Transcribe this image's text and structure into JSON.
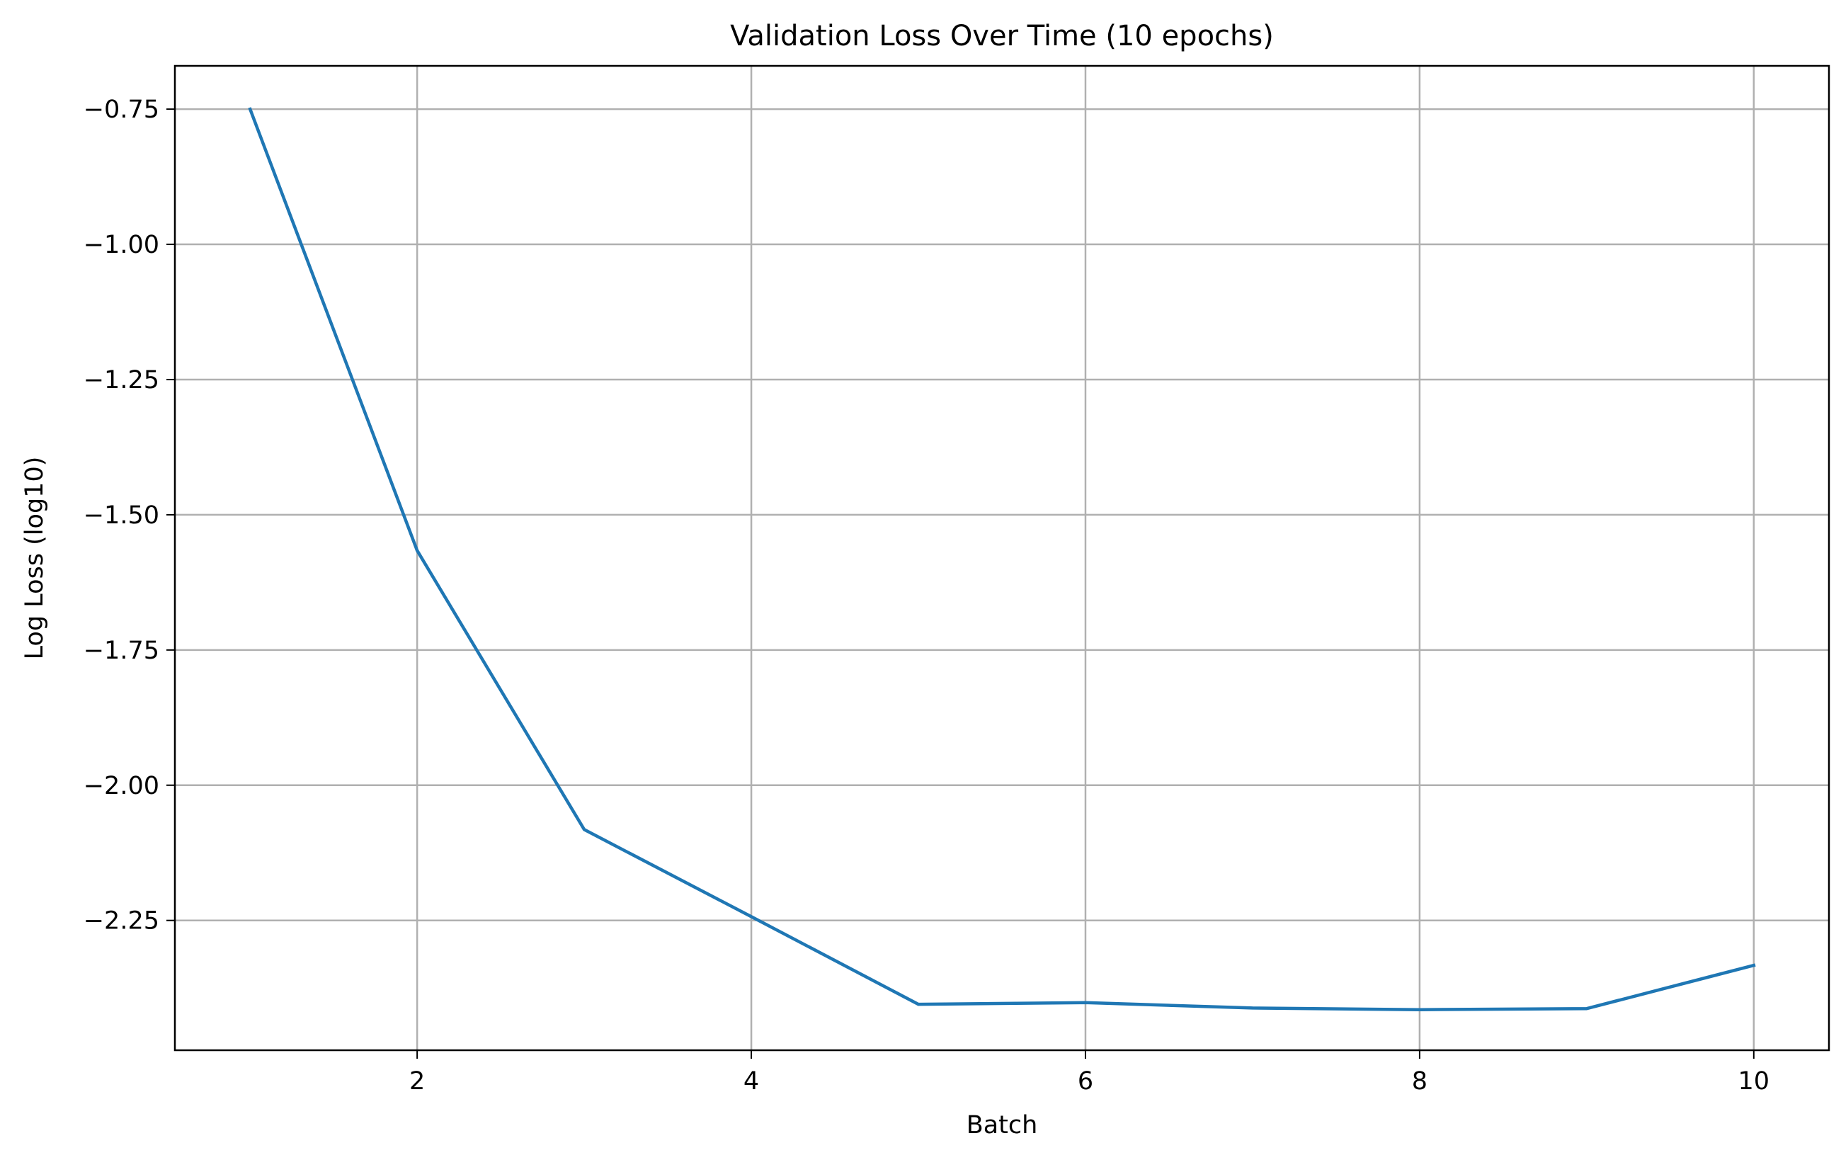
{
  "chart_data": {
    "type": "line",
    "title": "Validation Loss Over Time (10 epochs)",
    "xlabel": "Batch",
    "ylabel": "Log Loss (log10)",
    "xlim": [
      0.55,
      10.45
    ],
    "ylim": [
      -2.49,
      -0.67
    ],
    "xticks": [
      2,
      4,
      6,
      8,
      10
    ],
    "xtick_labels": [
      "2",
      "4",
      "6",
      "8",
      "10"
    ],
    "yticks": [
      -0.75,
      -1.0,
      -1.25,
      -1.5,
      -1.75,
      -2.0,
      -2.25
    ],
    "ytick_labels": [
      "−0.75",
      "−1.00",
      "−1.25",
      "−1.50",
      "−1.75",
      "−2.00",
      "−2.25"
    ],
    "grid": true,
    "series": [
      {
        "x": [
          1,
          2,
          3,
          4,
          5,
          6,
          7,
          8,
          9,
          10
        ],
        "y": [
          -0.75,
          -1.566,
          -2.082,
          -2.243,
          -2.405,
          -2.402,
          -2.412,
          -2.415,
          -2.413,
          -2.333
        ],
        "color": "#1f77b4"
      }
    ]
  }
}
